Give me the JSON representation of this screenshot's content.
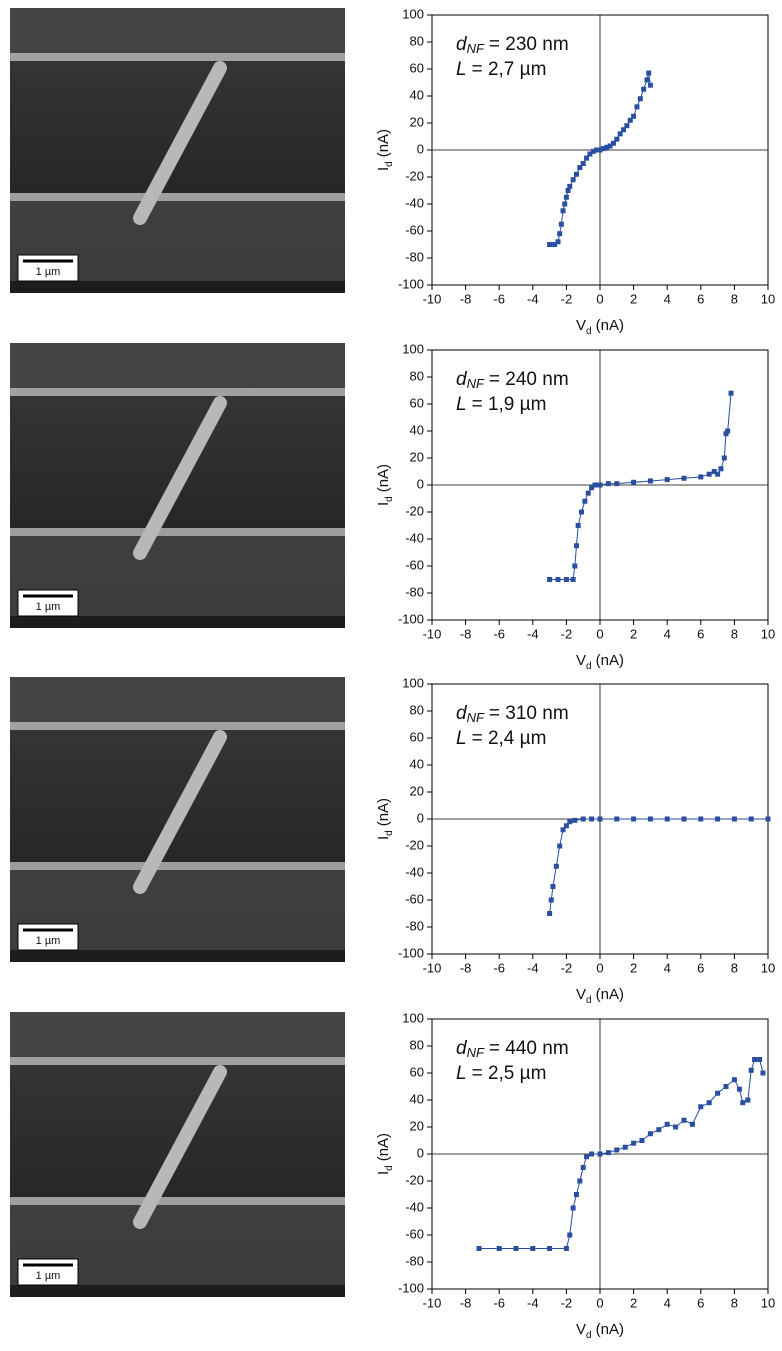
{
  "images": [
    {
      "scale_bar": "1 µm"
    },
    {
      "scale_bar": "1 µm"
    },
    {
      "scale_bar": "1 µm"
    },
    {
      "scale_bar": "1 µm"
    }
  ],
  "chart_data": [
    {
      "type": "line",
      "annotations": [
        {
          "var": "d",
          "sub": "NF",
          "text": "= 230 nm"
        },
        {
          "var": "L",
          "text": "= 2,7 µm"
        }
      ],
      "xlabel": {
        "main": "V",
        "sub": "d",
        "unit": "(nA)"
      },
      "ylabel": {
        "main": "I",
        "sub": "d",
        "unit": "(nA)"
      },
      "xlim": [
        -10,
        10
      ],
      "ylim": [
        -100,
        100
      ],
      "xticks": [
        -10,
        -8,
        -6,
        -4,
        -2,
        0,
        2,
        4,
        6,
        8,
        10
      ],
      "yticks": [
        -100,
        -80,
        -60,
        -40,
        -20,
        0,
        20,
        40,
        60,
        80,
        100
      ],
      "series": [
        {
          "color": "#2a4ea0",
          "x": [
            -3,
            -2.7,
            -2.5,
            -2.4,
            -2.3,
            -2.2,
            -2.1,
            -2,
            -1.9,
            -1.8,
            -1.6,
            -1.4,
            -1.2,
            -1,
            -0.8,
            -0.6,
            -0.4,
            -0.2,
            0,
            0.2,
            0.4,
            0.6,
            0.8,
            1,
            1.2,
            1.4,
            1.6,
            1.8,
            2,
            2.2,
            2.4,
            2.6,
            2.8,
            2.9,
            3
          ],
          "values": [
            -70,
            -70,
            -68,
            -62,
            -55,
            -45,
            -40,
            -35,
            -30,
            -27,
            -22,
            -18,
            -13,
            -10,
            -6,
            -3,
            -1,
            0,
            0,
            1,
            2,
            3,
            5,
            8,
            12,
            15,
            18,
            22,
            25,
            32,
            38,
            45,
            52,
            57,
            48
          ]
        }
      ]
    },
    {
      "type": "line",
      "annotations": [
        {
          "var": "d",
          "sub": "NF",
          "text": "= 240 nm"
        },
        {
          "var": "L",
          "text": "= 1,9 µm"
        }
      ],
      "xlabel": {
        "main": "V",
        "sub": "d",
        "unit": "(nA)"
      },
      "ylabel": {
        "main": "I",
        "sub": "d",
        "unit": "(nA)"
      },
      "xlim": [
        -10,
        10
      ],
      "ylim": [
        -100,
        100
      ],
      "xticks": [
        -10,
        -8,
        -6,
        -4,
        -2,
        0,
        2,
        4,
        6,
        8,
        10
      ],
      "yticks": [
        -100,
        -80,
        -60,
        -40,
        -20,
        0,
        20,
        40,
        60,
        80,
        100
      ],
      "series": [
        {
          "color": "#2a4ea0",
          "x": [
            -3,
            -2.5,
            -2,
            -1.6,
            -1.5,
            -1.4,
            -1.3,
            -1.1,
            -0.9,
            -0.7,
            -0.5,
            -0.3,
            0,
            0.5,
            1,
            2,
            3,
            4,
            5,
            6,
            6.5,
            6.8,
            7,
            7.2,
            7.4,
            7.5,
            7.6,
            7.8
          ],
          "values": [
            -70,
            -70,
            -70,
            -70,
            -60,
            -45,
            -30,
            -20,
            -12,
            -6,
            -2,
            0,
            0,
            1,
            1,
            2,
            3,
            4,
            5,
            6,
            8,
            10,
            8,
            12,
            20,
            38,
            40,
            68
          ]
        }
      ]
    },
    {
      "type": "line",
      "annotations": [
        {
          "var": "d",
          "sub": "NF",
          "text": "= 310 nm"
        },
        {
          "var": "L",
          "text": "= 2,4 µm"
        }
      ],
      "xlabel": {
        "main": "V",
        "sub": "d",
        "unit": "(nA)"
      },
      "ylabel": {
        "main": "I",
        "sub": "d",
        "unit": "(nA)"
      },
      "xlim": [
        -10,
        10
      ],
      "ylim": [
        -100,
        100
      ],
      "xticks": [
        -10,
        -8,
        -6,
        -4,
        -2,
        0,
        2,
        4,
        6,
        8,
        10
      ],
      "yticks": [
        -100,
        -80,
        -60,
        -40,
        -20,
        0,
        20,
        40,
        60,
        80,
        100
      ],
      "series": [
        {
          "color": "#2a4ea0",
          "x": [
            -3,
            -2.9,
            -2.8,
            -2.6,
            -2.4,
            -2.2,
            -2,
            -1.8,
            -1.5,
            -1,
            -0.5,
            0,
            1,
            2,
            3,
            4,
            5,
            6,
            7,
            8,
            9,
            10
          ],
          "values": [
            -70,
            -60,
            -50,
            -35,
            -20,
            -8,
            -5,
            -2,
            -1,
            0,
            0,
            0,
            0,
            0,
            0,
            0,
            0,
            0,
            0,
            0,
            0,
            0
          ]
        }
      ]
    },
    {
      "type": "line",
      "annotations": [
        {
          "var": "d",
          "sub": "NF",
          "text": "= 440 nm"
        },
        {
          "var": "L",
          "text": "= 2,5 µm"
        }
      ],
      "xlabel": {
        "main": "V",
        "sub": "d",
        "unit": "(nA)"
      },
      "ylabel": {
        "main": "I",
        "sub": "d",
        "unit": "(nA)"
      },
      "xlim": [
        -10,
        10
      ],
      "ylim": [
        -100,
        100
      ],
      "xticks": [
        -10,
        -8,
        -6,
        -4,
        -2,
        0,
        2,
        4,
        6,
        8,
        10
      ],
      "yticks": [
        -100,
        -80,
        -60,
        -40,
        -20,
        0,
        20,
        40,
        60,
        80,
        100
      ],
      "series": [
        {
          "color": "#2a4ea0",
          "x": [
            -7.2,
            -6,
            -5,
            -4,
            -3,
            -2,
            -1.8,
            -1.6,
            -1.4,
            -1.2,
            -1,
            -0.8,
            -0.5,
            0,
            0.5,
            1,
            1.5,
            2,
            2.5,
            3,
            3.5,
            4,
            4.5,
            5,
            5.5,
            6,
            6.5,
            7,
            7.5,
            8,
            8.3,
            8.5,
            8.8,
            9,
            9.2,
            9.5,
            9.7
          ],
          "values": [
            -70,
            -70,
            -70,
            -70,
            -70,
            -70,
            -60,
            -40,
            -30,
            -20,
            -10,
            -2,
            0,
            0,
            1,
            3,
            5,
            8,
            10,
            15,
            18,
            22,
            20,
            25,
            22,
            35,
            38,
            45,
            50,
            55,
            48,
            38,
            40,
            62,
            70,
            70,
            60
          ]
        }
      ]
    }
  ]
}
